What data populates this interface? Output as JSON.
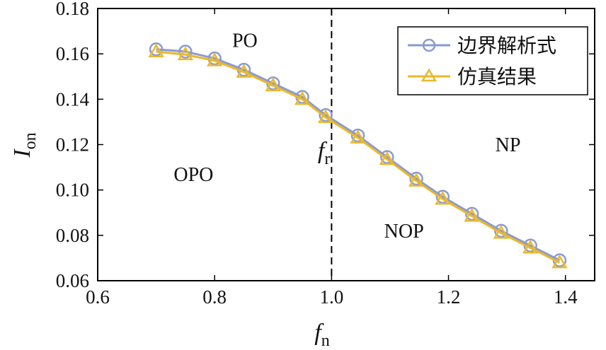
{
  "chart_data": {
    "type": "line",
    "ylabel": "I",
    "ylabel_sub": "on",
    "xlabel": "f",
    "xlabel_sub": "n",
    "xlim": [
      0.6,
      1.45
    ],
    "ylim": [
      0.06,
      0.18
    ],
    "xticks": [
      "0.6",
      "0.8",
      "1.0",
      "1.2",
      "1.4"
    ],
    "yticks": [
      "0.06",
      "0.08",
      "0.10",
      "0.12",
      "0.14",
      "0.16",
      "0.18"
    ],
    "grid": false,
    "legend_position": "top-right",
    "series": [
      {
        "name": "边界解析式",
        "color": "#8a9ad0",
        "marker": "circle",
        "x": [
          0.7,
          0.75,
          0.8,
          0.85,
          0.9,
          0.95,
          0.99,
          1.045,
          1.095,
          1.145,
          1.19,
          1.24,
          1.29,
          1.34,
          1.39
        ],
        "y": [
          0.162,
          0.161,
          0.158,
          0.153,
          0.147,
          0.141,
          0.133,
          0.124,
          0.1145,
          0.105,
          0.097,
          0.0895,
          0.082,
          0.0755,
          0.069
        ]
      },
      {
        "name": "仿真结果",
        "color": "#eab82c",
        "marker": "triangle",
        "x": [
          0.7,
          0.75,
          0.8,
          0.85,
          0.9,
          0.95,
          0.99,
          1.045,
          1.095,
          1.145,
          1.19,
          1.24,
          1.29,
          1.34,
          1.39
        ],
        "y": [
          0.161,
          0.1597,
          0.157,
          0.152,
          0.146,
          0.14,
          0.132,
          0.123,
          0.1135,
          0.104,
          0.096,
          0.0885,
          0.081,
          0.0745,
          0.068
        ]
      }
    ],
    "vline": {
      "x": 1.0,
      "style": "dashed",
      "label": "f",
      "label_sub": "r"
    },
    "annotations": [
      {
        "text": "PO",
        "x": 0.83,
        "y": 0.163
      },
      {
        "text": "OPO",
        "x": 0.73,
        "y": 0.104
      },
      {
        "text": "NOP",
        "x": 1.09,
        "y": 0.079
      },
      {
        "text": "NP",
        "x": 1.28,
        "y": 0.117
      }
    ]
  }
}
